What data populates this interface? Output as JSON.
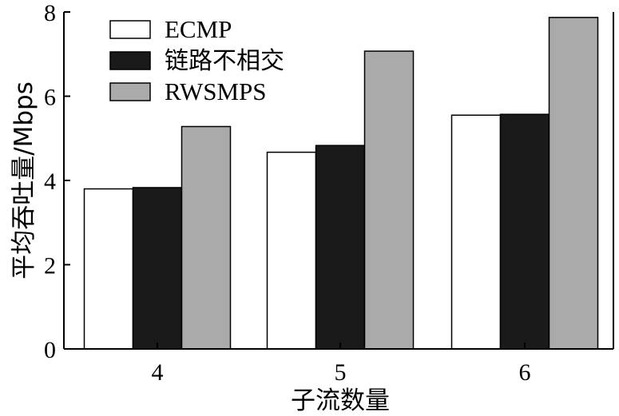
{
  "chart_data": {
    "type": "bar",
    "categories": [
      "4",
      "5",
      "6"
    ],
    "series": [
      {
        "name": "ECMP",
        "values": [
          3.8,
          4.67,
          5.55
        ],
        "color": "#ffffff"
      },
      {
        "name": "链路不相交",
        "values": [
          3.83,
          4.83,
          5.57
        ],
        "color": "#1a1a1a"
      },
      {
        "name": "RWSMPS",
        "values": [
          5.28,
          7.07,
          7.87
        ],
        "color": "#aaaaaa"
      }
    ],
    "xlabel": "子流数量",
    "ylabel": "平均吞吐量/Mbps",
    "ylim": [
      0,
      8
    ],
    "yticks": [
      "0",
      "2",
      "4",
      "6",
      "8"
    ],
    "grid": false,
    "legend_position": "top-left"
  }
}
